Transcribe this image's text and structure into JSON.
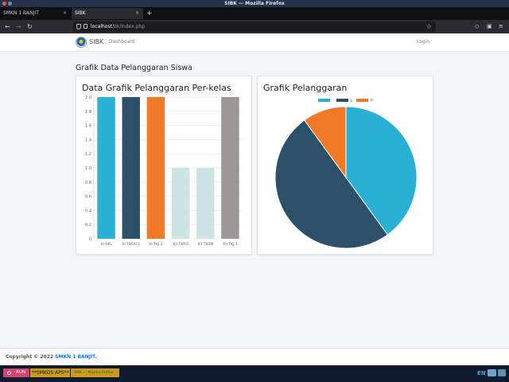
{
  "browser": {
    "window_title": "SIBK — Mozilla Firefox",
    "tabs": [
      {
        "label": "SMKN 1 BANJIT",
        "active": false
      },
      {
        "label": "SIBK",
        "active": true
      }
    ],
    "url_host": "localhost",
    "url_path": "/bk/index.php"
  },
  "app": {
    "brand": "SIBK",
    "nav_dashboard": "Dashboard",
    "login": "Login",
    "page_title": "Grafik Data Pelanggaran Siswa"
  },
  "bar_card": {
    "title": "Data Grafik Pelanggaran Per-kelas"
  },
  "pie_card": {
    "title": "Grafik Pelanggaran"
  },
  "chart_data": [
    {
      "type": "bar",
      "title": "Data Grafik Pelanggaran Per-kelas",
      "categories": [
        "XI AKL",
        "XI TBSM 1",
        "XI TKJ 2",
        "XII TKRO",
        "XII TBSM",
        "XII TKJ 1"
      ],
      "values": [
        2,
        2,
        2,
        1,
        1,
        2
      ],
      "colors": [
        "#29b0d4",
        "#2c5069",
        "#f07a28",
        "#cde3e6",
        "#cde3e6",
        "#9d9696"
      ],
      "ylim": [
        0,
        2
      ],
      "yticks": [
        "0",
        "0.2",
        "0.4",
        "0.6",
        "0.8",
        "1.0",
        "1.2",
        "1.4",
        "1.6",
        "1.8",
        "2.0"
      ],
      "grid": true
    },
    {
      "type": "pie",
      "title": "Grafik Pelanggaran",
      "labels": [
        "",
        "L",
        "P"
      ],
      "values": [
        40,
        50,
        10
      ],
      "colors": [
        "#29b0d4",
        "#2c5069",
        "#f07a28"
      ],
      "legend": "top"
    }
  ],
  "footer": {
    "copyright": "Copyright © 2022 ",
    "org": "SMKN 1 BANJIT",
    "period": "."
  },
  "taskbar": {
    "run": "RUN",
    "item1": "**SMKOS APS**",
    "item2": "SIBK — Mozilla Firefox",
    "lang": "EN"
  },
  "icons": [
    "shield-icon",
    "lock-icon",
    "star-icon",
    "back-icon",
    "forward-icon",
    "reload-icon"
  ]
}
